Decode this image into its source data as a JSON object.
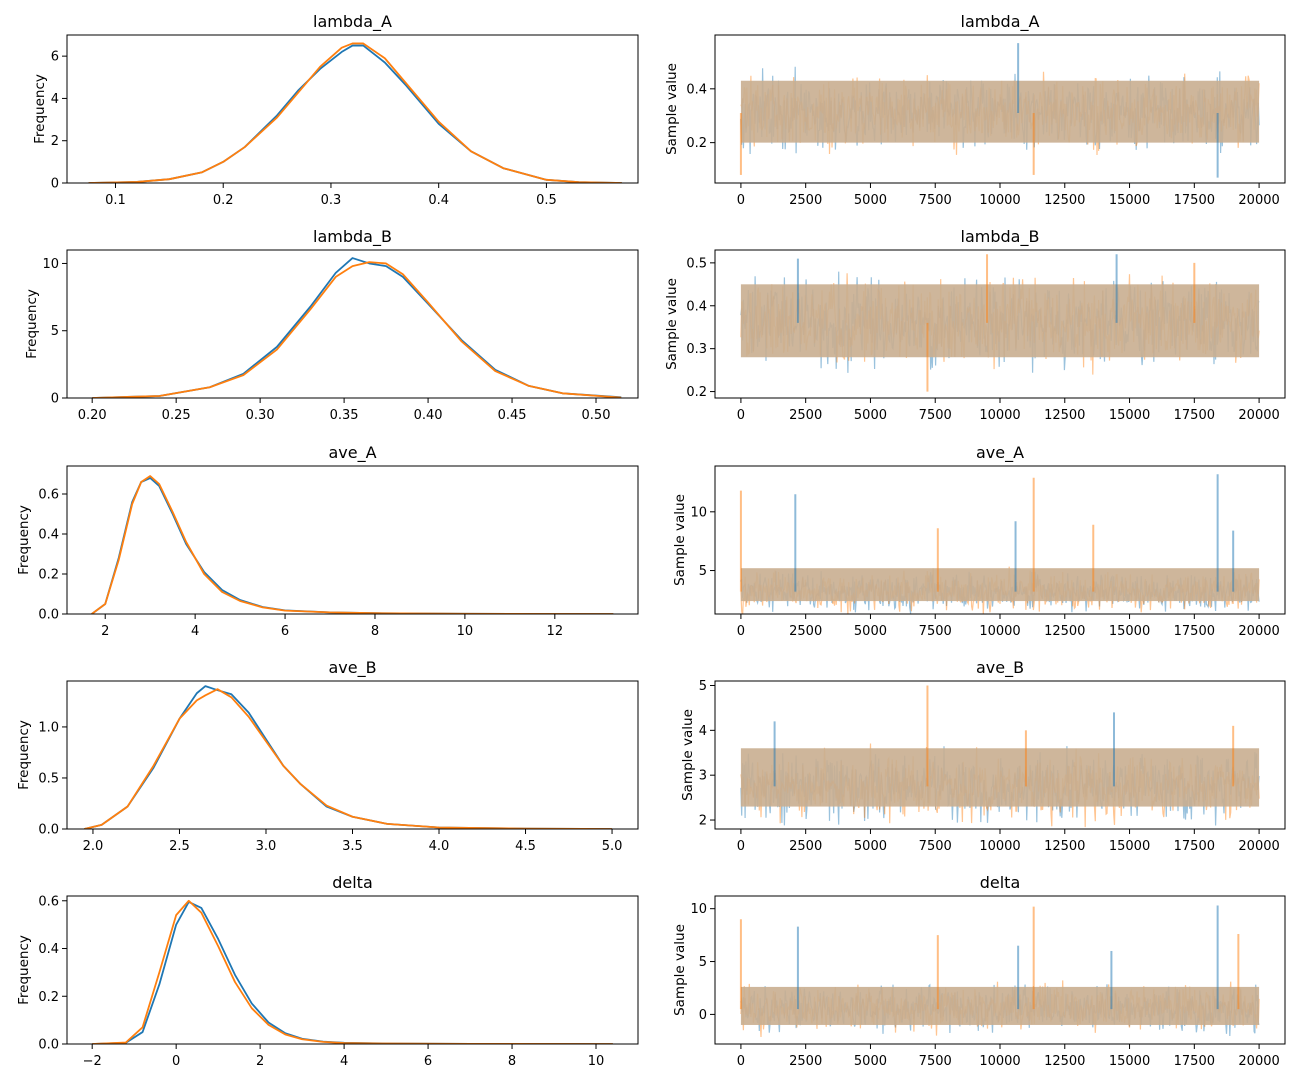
{
  "colors": {
    "chain_1": "#1f77b4",
    "chain_2": "#ff7f0e",
    "trace_overlap": "#c9ae90",
    "axes": "#000000",
    "background": "#ffffff"
  },
  "chart_data": [
    {
      "id": "lambda_A_kde",
      "type": "line",
      "title": "lambda_A",
      "xlabel": "",
      "ylabel": "Frequency",
      "xlim": [
        0.055,
        0.585
      ],
      "ylim": [
        0,
        7.0
      ],
      "xticks": [
        0.1,
        0.2,
        0.3,
        0.4,
        0.5
      ],
      "xtick_labels": [
        "0.1",
        "0.2",
        "0.3",
        "0.4",
        "0.5"
      ],
      "yticks": [
        0,
        2,
        4,
        6
      ],
      "ytick_labels": [
        "0",
        "2",
        "4",
        "6"
      ],
      "series": [
        {
          "x": [
            0.075,
            0.12,
            0.15,
            0.18,
            0.2,
            0.22,
            0.25,
            0.27,
            0.29,
            0.31,
            0.32,
            0.33,
            0.35,
            0.37,
            0.4,
            0.43,
            0.46,
            0.5,
            0.53,
            0.57
          ],
          "values": [
            0,
            0.05,
            0.18,
            0.5,
            1.0,
            1.7,
            3.2,
            4.4,
            5.4,
            6.2,
            6.5,
            6.5,
            5.7,
            4.6,
            2.8,
            1.5,
            0.7,
            0.15,
            0.04,
            0
          ]
        },
        {
          "x": [
            0.075,
            0.12,
            0.15,
            0.18,
            0.2,
            0.22,
            0.25,
            0.27,
            0.29,
            0.31,
            0.32,
            0.33,
            0.35,
            0.37,
            0.4,
            0.43,
            0.46,
            0.5,
            0.53,
            0.57
          ],
          "values": [
            0,
            0.05,
            0.18,
            0.5,
            1.0,
            1.7,
            3.1,
            4.3,
            5.5,
            6.4,
            6.6,
            6.6,
            5.9,
            4.7,
            2.9,
            1.5,
            0.7,
            0.15,
            0.04,
            0
          ]
        }
      ]
    },
    {
      "id": "lambda_A_trace",
      "type": "line",
      "title": "lambda_A",
      "xlabel": "",
      "ylabel": "Sample value",
      "xlim": [
        -1000,
        21000
      ],
      "ylim": [
        0.05,
        0.6
      ],
      "xticks": [
        0,
        2500,
        5000,
        7500,
        10000,
        12500,
        15000,
        17500,
        20000
      ],
      "xtick_labels": [
        "0",
        "2500",
        "5000",
        "7500",
        "10000",
        "12500",
        "15000",
        "17500",
        "20000"
      ],
      "yticks": [
        0.2,
        0.4
      ],
      "ytick_labels": [
        "0.2",
        "0.4"
      ],
      "trace": {
        "n": 20000,
        "center": 0.31,
        "band": [
          0.2,
          0.43
        ],
        "spikes": [
          [
            0,
            0.08
          ],
          [
            10700,
            0.57
          ],
          [
            11300,
            0.08
          ],
          [
            18400,
            0.07
          ]
        ]
      }
    },
    {
      "id": "lambda_B_kde",
      "type": "line",
      "title": "lambda_B",
      "xlabel": "",
      "ylabel": "Frequency",
      "xlim": [
        0.185,
        0.525
      ],
      "ylim": [
        0,
        11.0
      ],
      "xticks": [
        0.2,
        0.25,
        0.3,
        0.35,
        0.4,
        0.45,
        0.5
      ],
      "xtick_labels": [
        "0.20",
        "0.25",
        "0.30",
        "0.35",
        "0.40",
        "0.45",
        "0.50"
      ],
      "yticks": [
        0,
        5,
        10
      ],
      "ytick_labels": [
        "0",
        "5",
        "10"
      ],
      "series": [
        {
          "x": [
            0.2,
            0.24,
            0.27,
            0.29,
            0.31,
            0.33,
            0.345,
            0.355,
            0.365,
            0.375,
            0.385,
            0.4,
            0.42,
            0.44,
            0.46,
            0.48,
            0.515
          ],
          "values": [
            0,
            0.15,
            0.8,
            1.8,
            3.8,
            6.8,
            9.3,
            10.4,
            10.0,
            9.8,
            9.0,
            7.0,
            4.3,
            2.1,
            0.9,
            0.35,
            0.05
          ]
        },
        {
          "x": [
            0.2,
            0.24,
            0.27,
            0.29,
            0.31,
            0.33,
            0.345,
            0.355,
            0.365,
            0.375,
            0.385,
            0.4,
            0.42,
            0.44,
            0.46,
            0.48,
            0.515
          ],
          "values": [
            0,
            0.15,
            0.8,
            1.7,
            3.6,
            6.6,
            9.0,
            9.8,
            10.1,
            10.0,
            9.2,
            7.1,
            4.2,
            2.0,
            0.9,
            0.35,
            0.03
          ]
        }
      ]
    },
    {
      "id": "lambda_B_trace",
      "type": "line",
      "title": "lambda_B",
      "xlabel": "",
      "ylabel": "Sample value",
      "xlim": [
        -1000,
        21000
      ],
      "ylim": [
        0.185,
        0.53
      ],
      "xticks": [
        0,
        2500,
        5000,
        7500,
        10000,
        12500,
        15000,
        17500,
        20000
      ],
      "xtick_labels": [
        "0",
        "2500",
        "5000",
        "7500",
        "10000",
        "12500",
        "15000",
        "17500",
        "20000"
      ],
      "yticks": [
        0.2,
        0.3,
        0.4,
        0.5
      ],
      "ytick_labels": [
        "0.2",
        "0.3",
        "0.4",
        "0.5"
      ],
      "trace": {
        "n": 20000,
        "center": 0.36,
        "band": [
          0.28,
          0.45
        ],
        "spikes": [
          [
            7200,
            0.2
          ],
          [
            2200,
            0.51
          ],
          [
            9500,
            0.52
          ],
          [
            14500,
            0.52
          ],
          [
            17500,
            0.5
          ]
        ]
      }
    },
    {
      "id": "ave_A_kde",
      "type": "line",
      "title": "ave_A",
      "xlabel": "",
      "ylabel": "Frequency",
      "xlim": [
        1.15,
        13.85
      ],
      "ylim": [
        0,
        0.74
      ],
      "xticks": [
        2,
        4,
        6,
        8,
        10,
        12
      ],
      "xtick_labels": [
        "2",
        "4",
        "6",
        "8",
        "10",
        "12"
      ],
      "yticks": [
        0,
        0.2,
        0.4,
        0.6
      ],
      "ytick_labels": [
        "0.0",
        "0.2",
        "0.4",
        "0.6"
      ],
      "series": [
        {
          "x": [
            1.7,
            2.0,
            2.3,
            2.6,
            2.8,
            3.0,
            3.2,
            3.5,
            3.8,
            4.2,
            4.6,
            5.0,
            5.5,
            6.0,
            7.0,
            8.0,
            10.0,
            13.3
          ],
          "values": [
            0,
            0.05,
            0.28,
            0.56,
            0.66,
            0.68,
            0.64,
            0.5,
            0.35,
            0.21,
            0.12,
            0.07,
            0.035,
            0.018,
            0.008,
            0.004,
            0.001,
            0
          ]
        },
        {
          "x": [
            1.7,
            2.0,
            2.3,
            2.6,
            2.8,
            3.0,
            3.2,
            3.5,
            3.8,
            4.2,
            4.6,
            5.0,
            5.5,
            6.0,
            7.0,
            8.0,
            10.0,
            13.3
          ],
          "values": [
            0,
            0.05,
            0.27,
            0.55,
            0.66,
            0.69,
            0.65,
            0.51,
            0.36,
            0.2,
            0.11,
            0.065,
            0.033,
            0.017,
            0.008,
            0.004,
            0.001,
            0
          ]
        }
      ]
    },
    {
      "id": "ave_A_trace",
      "type": "line",
      "title": "ave_A",
      "xlabel": "",
      "ylabel": "Sample value",
      "xlim": [
        -1000,
        21000
      ],
      "ylim": [
        1.3,
        13.9
      ],
      "xticks": [
        0,
        2500,
        5000,
        7500,
        10000,
        12500,
        15000,
        17500,
        20000
      ],
      "xtick_labels": [
        "0",
        "2500",
        "5000",
        "7500",
        "10000",
        "12500",
        "15000",
        "17500",
        "20000"
      ],
      "yticks": [
        5,
        10
      ],
      "ytick_labels": [
        "5",
        "10"
      ],
      "trace": {
        "n": 20000,
        "center": 3.2,
        "band": [
          2.4,
          5.2
        ],
        "spikes": [
          [
            0,
            11.8
          ],
          [
            2100,
            11.5
          ],
          [
            11300,
            12.9
          ],
          [
            18400,
            13.2
          ],
          [
            7600,
            8.6
          ],
          [
            10600,
            9.2
          ],
          [
            13600,
            8.9
          ],
          [
            19000,
            8.4
          ]
        ]
      }
    },
    {
      "id": "ave_B_kde",
      "type": "line",
      "title": "ave_B",
      "xlabel": "",
      "ylabel": "Frequency",
      "xlim": [
        1.85,
        5.15
      ],
      "ylim": [
        0,
        1.45
      ],
      "xticks": [
        2.0,
        2.5,
        3.0,
        3.5,
        4.0,
        4.5,
        5.0
      ],
      "xtick_labels": [
        "2.0",
        "2.5",
        "3.0",
        "3.5",
        "4.0",
        "4.5",
        "5.0"
      ],
      "yticks": [
        0,
        0.5,
        1.0
      ],
      "ytick_labels": [
        "0.0",
        "0.5",
        "1.0"
      ],
      "series": [
        {
          "x": [
            1.95,
            2.05,
            2.2,
            2.35,
            2.5,
            2.6,
            2.65,
            2.72,
            2.8,
            2.9,
            3.0,
            3.1,
            3.2,
            3.35,
            3.5,
            3.7,
            4.0,
            4.5,
            5.0
          ],
          "values": [
            0,
            0.04,
            0.22,
            0.6,
            1.08,
            1.33,
            1.4,
            1.36,
            1.32,
            1.14,
            0.88,
            0.62,
            0.44,
            0.22,
            0.12,
            0.05,
            0.015,
            0.003,
            0
          ]
        },
        {
          "x": [
            1.95,
            2.05,
            2.2,
            2.35,
            2.5,
            2.6,
            2.65,
            2.72,
            2.8,
            2.9,
            3.0,
            3.1,
            3.2,
            3.35,
            3.5,
            3.7,
            4.0,
            4.5,
            5.0
          ],
          "values": [
            0,
            0.04,
            0.22,
            0.62,
            1.08,
            1.26,
            1.31,
            1.37,
            1.29,
            1.1,
            0.86,
            0.62,
            0.44,
            0.23,
            0.12,
            0.05,
            0.015,
            0.003,
            0
          ]
        }
      ]
    },
    {
      "id": "ave_B_trace",
      "type": "line",
      "title": "ave_B",
      "xlabel": "",
      "ylabel": "Sample value",
      "xlim": [
        -1000,
        21000
      ],
      "ylim": [
        1.8,
        5.1
      ],
      "xticks": [
        0,
        2500,
        5000,
        7500,
        10000,
        12500,
        15000,
        17500,
        20000
      ],
      "xtick_labels": [
        "0",
        "2500",
        "5000",
        "7500",
        "10000",
        "12500",
        "15000",
        "17500",
        "20000"
      ],
      "yticks": [
        2,
        3,
        4,
        5
      ],
      "ytick_labels": [
        "2",
        "3",
        "4",
        "5"
      ],
      "trace": {
        "n": 20000,
        "center": 2.75,
        "band": [
          2.3,
          3.6
        ],
        "spikes": [
          [
            7200,
            5.0
          ],
          [
            14400,
            4.4
          ],
          [
            19000,
            4.1
          ],
          [
            1300,
            4.2
          ],
          [
            11000,
            4.0
          ]
        ]
      }
    },
    {
      "id": "delta_kde",
      "type": "line",
      "title": "delta",
      "xlabel": "",
      "ylabel": "Frequency",
      "xlim": [
        -2.6,
        11.0
      ],
      "ylim": [
        0,
        0.62
      ],
      "xticks": [
        -2,
        0,
        2,
        4,
        6,
        8,
        10
      ],
      "xtick_labels": [
        "−2",
        "0",
        "2",
        "4",
        "6",
        "8",
        "10"
      ],
      "yticks": [
        0,
        0.2,
        0.4,
        0.6
      ],
      "ytick_labels": [
        "0.0",
        "0.2",
        "0.4",
        "0.6"
      ],
      "series": [
        {
          "x": [
            -2.0,
            -1.2,
            -0.8,
            -0.4,
            0.0,
            0.3,
            0.6,
            1.0,
            1.4,
            1.8,
            2.2,
            2.6,
            3.0,
            3.5,
            4.0,
            5.0,
            7.0,
            10.4
          ],
          "values": [
            0,
            0.005,
            0.05,
            0.25,
            0.5,
            0.595,
            0.57,
            0.44,
            0.29,
            0.17,
            0.09,
            0.045,
            0.022,
            0.01,
            0.005,
            0.002,
            0.0005,
            0
          ]
        },
        {
          "x": [
            -2.0,
            -1.2,
            -0.8,
            -0.4,
            0.0,
            0.3,
            0.6,
            1.0,
            1.4,
            1.8,
            2.2,
            2.6,
            3.0,
            3.5,
            4.0,
            5.0,
            7.0,
            10.4
          ],
          "values": [
            0,
            0.006,
            0.07,
            0.3,
            0.54,
            0.6,
            0.55,
            0.41,
            0.26,
            0.15,
            0.08,
            0.04,
            0.02,
            0.009,
            0.004,
            0.002,
            0.0005,
            0
          ]
        }
      ]
    },
    {
      "id": "delta_trace",
      "type": "line",
      "title": "delta",
      "xlabel": "",
      "ylabel": "Sample value",
      "xlim": [
        -1000,
        21000
      ],
      "ylim": [
        -2.8,
        11.2
      ],
      "xticks": [
        0,
        2500,
        5000,
        7500,
        10000,
        12500,
        15000,
        17500,
        20000
      ],
      "xtick_labels": [
        "0",
        "2500",
        "5000",
        "7500",
        "10000",
        "12500",
        "15000",
        "17500",
        "20000"
      ],
      "yticks": [
        0,
        5,
        10
      ],
      "ytick_labels": [
        "0",
        "5",
        "10"
      ],
      "trace": {
        "n": 20000,
        "center": 0.5,
        "band": [
          -1.0,
          2.6
        ],
        "spikes": [
          [
            0,
            9.0
          ],
          [
            2200,
            8.3
          ],
          [
            11300,
            10.2
          ],
          [
            18400,
            10.3
          ],
          [
            7600,
            7.5
          ],
          [
            10700,
            6.5
          ],
          [
            19200,
            7.6
          ],
          [
            14300,
            6.0
          ]
        ]
      }
    }
  ]
}
